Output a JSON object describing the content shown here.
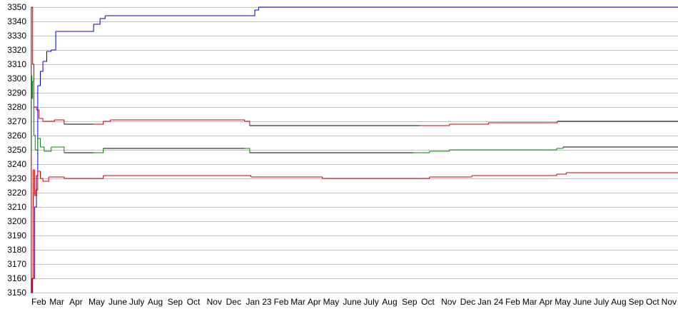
{
  "chart_data": {
    "type": "line",
    "title": "",
    "xlabel": "",
    "ylabel": "",
    "ylim": [
      3150,
      3350
    ],
    "xlim": [
      "2022-02-01",
      "2024-11-05"
    ],
    "grid": "horizontal",
    "yticks": [
      3150,
      3160,
      3170,
      3180,
      3190,
      3200,
      3210,
      3220,
      3230,
      3240,
      3250,
      3260,
      3270,
      3280,
      3290,
      3300,
      3310,
      3320,
      3330,
      3340,
      3350
    ],
    "xticks": [
      {
        "date": "2022-02-01",
        "label": "Feb"
      },
      {
        "date": "2022-03-01",
        "label": "Mar"
      },
      {
        "date": "2022-04-01",
        "label": "Apr"
      },
      {
        "date": "2022-05-01",
        "label": "May"
      },
      {
        "date": "2022-06-01",
        "label": "June"
      },
      {
        "date": "2022-07-01",
        "label": "July"
      },
      {
        "date": "2022-08-01",
        "label": "Aug"
      },
      {
        "date": "2022-09-01",
        "label": "Sep"
      },
      {
        "date": "2022-10-01",
        "label": "Oct"
      },
      {
        "date": "2022-11-01",
        "label": "Nov"
      },
      {
        "date": "2022-12-01",
        "label": "Dec"
      },
      {
        "date": "2023-01-01",
        "label": "Jan 23"
      },
      {
        "date": "2023-02-01",
        "label": "Feb"
      },
      {
        "date": "2023-03-01",
        "label": "Mar"
      },
      {
        "date": "2023-04-01",
        "label": "Apr"
      },
      {
        "date": "2023-05-01",
        "label": "May"
      },
      {
        "date": "2023-06-01",
        "label": "June"
      },
      {
        "date": "2023-07-01",
        "label": "July"
      },
      {
        "date": "2023-08-01",
        "label": "Aug"
      },
      {
        "date": "2023-09-01",
        "label": "Sep"
      },
      {
        "date": "2023-10-01",
        "label": "Oct"
      },
      {
        "date": "2023-11-01",
        "label": "Nov"
      },
      {
        "date": "2023-12-01",
        "label": "Dec"
      },
      {
        "date": "2024-01-01",
        "label": "Jan 24"
      },
      {
        "date": "2024-02-01",
        "label": "Feb"
      },
      {
        "date": "2024-03-01",
        "label": "Mar"
      },
      {
        "date": "2024-04-01",
        "label": "Apr"
      },
      {
        "date": "2024-05-01",
        "label": "May"
      },
      {
        "date": "2024-06-01",
        "label": "June"
      },
      {
        "date": "2024-07-01",
        "label": "July"
      },
      {
        "date": "2024-08-01",
        "label": "Aug"
      },
      {
        "date": "2024-09-01",
        "label": "Sep"
      },
      {
        "date": "2024-10-01",
        "label": "Oct"
      },
      {
        "date": "2024-11-01",
        "label": "Nov"
      }
    ],
    "series": [
      {
        "color": "#0000cc",
        "alt_color": "#0000cc",
        "points": [
          [
            "2022-02-01",
            3150
          ],
          [
            "2022-02-04",
            3160
          ],
          [
            "2022-02-07",
            3210
          ],
          [
            "2022-02-10",
            3232
          ],
          [
            "2022-02-12",
            3295
          ],
          [
            "2022-02-16",
            3305
          ],
          [
            "2022-02-20",
            3312
          ],
          [
            "2022-02-26",
            3319
          ],
          [
            "2022-03-05",
            3320
          ],
          [
            "2022-03-12",
            3333
          ],
          [
            "2022-04-30",
            3333
          ],
          [
            "2022-05-10",
            3338
          ],
          [
            "2022-05-20",
            3342
          ],
          [
            "2022-05-28",
            3344
          ],
          [
            "2023-01-10",
            3344
          ],
          [
            "2023-01-16",
            3348
          ],
          [
            "2023-01-22",
            3350
          ],
          [
            "2024-11-05",
            3350
          ]
        ]
      },
      {
        "color": "#000000",
        "alt_color": "#cc0000",
        "points": [
          [
            "2022-02-01",
            3150
          ],
          [
            "2022-02-02",
            3350
          ],
          [
            "2022-02-04",
            3310
          ],
          [
            "2022-02-06",
            3280
          ],
          [
            "2022-02-10",
            3278
          ],
          [
            "2022-02-14",
            3272
          ],
          [
            "2022-02-20",
            3270
          ],
          [
            "2022-03-10",
            3271
          ],
          [
            "2022-03-25",
            3268
          ],
          [
            "2022-05-10",
            3268
          ],
          [
            "2022-05-25",
            3270
          ],
          [
            "2022-06-05",
            3271
          ],
          [
            "2022-12-31",
            3270
          ],
          [
            "2023-01-08",
            3267
          ],
          [
            "2023-10-01",
            3267
          ],
          [
            "2023-11-15",
            3268
          ],
          [
            "2024-01-15",
            3269
          ],
          [
            "2024-05-01",
            3270
          ],
          [
            "2024-11-05",
            3270
          ]
        ]
      },
      {
        "color": "#000000",
        "alt_color": "#008800",
        "points": [
          [
            "2022-02-01",
            3249
          ],
          [
            "2022-02-02",
            3302
          ],
          [
            "2022-02-03",
            3286
          ],
          [
            "2022-02-04",
            3298
          ],
          [
            "2022-02-06",
            3260
          ],
          [
            "2022-02-08",
            3250
          ],
          [
            "2022-02-12",
            3258
          ],
          [
            "2022-02-16",
            3252
          ],
          [
            "2022-02-22",
            3249
          ],
          [
            "2022-03-05",
            3252
          ],
          [
            "2022-03-25",
            3248
          ],
          [
            "2022-05-10",
            3248
          ],
          [
            "2022-05-25",
            3251
          ],
          [
            "2022-12-31",
            3251
          ],
          [
            "2023-01-08",
            3248
          ],
          [
            "2023-09-20",
            3248
          ],
          [
            "2023-10-15",
            3249
          ],
          [
            "2023-11-15",
            3250
          ],
          [
            "2024-04-30",
            3251
          ],
          [
            "2024-05-10",
            3252
          ],
          [
            "2024-11-05",
            3252
          ]
        ]
      },
      {
        "color": "#cc0000",
        "alt_color": "#cc0000",
        "points": [
          [
            "2022-02-01",
            3150
          ],
          [
            "2022-02-03",
            3160
          ],
          [
            "2022-02-05",
            3236
          ],
          [
            "2022-02-07",
            3218
          ],
          [
            "2022-02-09",
            3222
          ],
          [
            "2022-02-12",
            3235
          ],
          [
            "2022-02-16",
            3230
          ],
          [
            "2022-02-20",
            3228
          ],
          [
            "2022-03-01",
            3231
          ],
          [
            "2022-03-25",
            3230
          ],
          [
            "2022-05-10",
            3230
          ],
          [
            "2022-05-25",
            3232
          ],
          [
            "2022-12-31",
            3232
          ],
          [
            "2023-01-10",
            3231
          ],
          [
            "2023-05-01",
            3230
          ],
          [
            "2023-09-30",
            3230
          ],
          [
            "2023-10-15",
            3231
          ],
          [
            "2023-12-20",
            3232
          ],
          [
            "2024-04-30",
            3233
          ],
          [
            "2024-05-15",
            3234
          ],
          [
            "2024-11-05",
            3234
          ]
        ]
      }
    ]
  }
}
